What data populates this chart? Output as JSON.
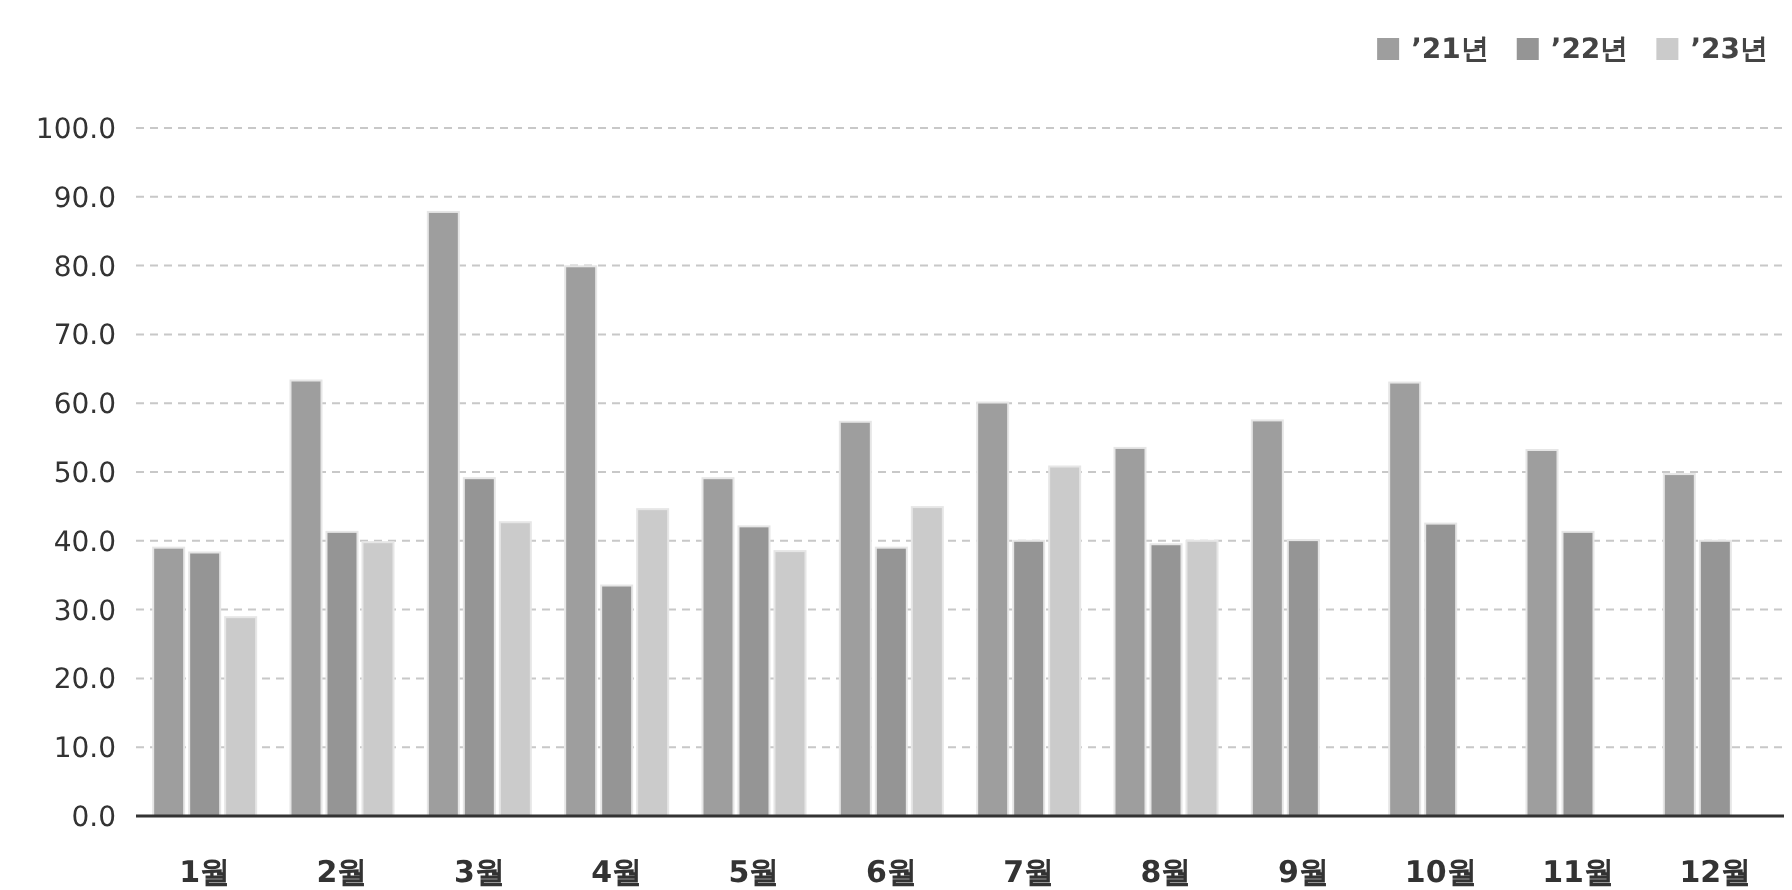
{
  "chart_data": {
    "type": "bar",
    "categories": [
      "1월",
      "2월",
      "3월",
      "4월",
      "5월",
      "6월",
      "7월",
      "8월",
      "9월",
      "10월",
      "11월",
      "12월"
    ],
    "series": [
      {
        "name": "’21년",
        "color": "#9e9e9e",
        "values": [
          39.0,
          63.3,
          87.8,
          79.9,
          49.1,
          57.3,
          60.1,
          53.5,
          57.5,
          63.0,
          53.2,
          49.7
        ]
      },
      {
        "name": "’22년",
        "color": "#959595",
        "values": [
          38.3,
          41.3,
          49.1,
          33.5,
          42.1,
          39.0,
          40.0,
          39.5,
          40.1,
          42.5,
          41.3,
          40.0
        ]
      },
      {
        "name": "’23년",
        "color": "#cbcbcb",
        "values": [
          28.9,
          39.8,
          42.7,
          44.6,
          38.5,
          44.9,
          50.8,
          40.0,
          null,
          null,
          null,
          null
        ]
      }
    ],
    "ylim": [
      0,
      100
    ],
    "yticks": [
      {
        "value": 0,
        "label": "0.0"
      },
      {
        "value": 10,
        "label": "10.0"
      },
      {
        "value": 20,
        "label": "20.0"
      },
      {
        "value": 30,
        "label": "30.0"
      },
      {
        "value": 40,
        "label": "40.0"
      },
      {
        "value": 50,
        "label": "50.0"
      },
      {
        "value": 60,
        "label": "60.0"
      },
      {
        "value": 70,
        "label": "70.0"
      },
      {
        "value": 80,
        "label": "80.0"
      },
      {
        "value": 90,
        "label": "90.0"
      },
      {
        "value": 100,
        "label": "100.0"
      }
    ],
    "grid": "y",
    "legend": "top right"
  }
}
